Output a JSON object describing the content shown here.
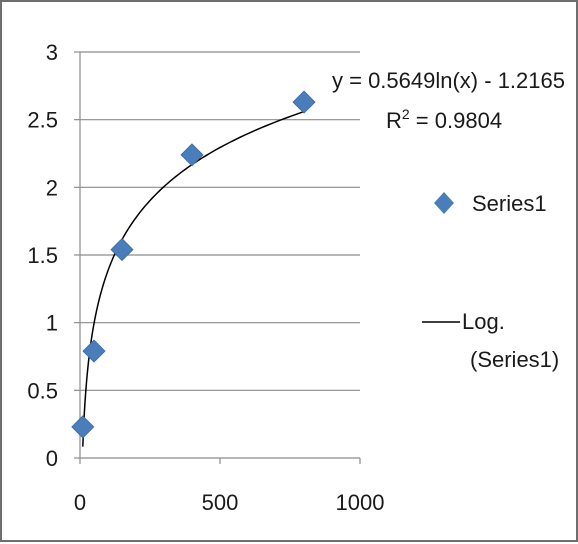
{
  "chart_data": {
    "type": "scatter",
    "title": "",
    "xlabel": "",
    "ylabel": "",
    "xlim": [
      0,
      1000
    ],
    "ylim": [
      0,
      3
    ],
    "x_ticks": [
      0,
      500,
      1000
    ],
    "x_tick_labels": [
      "0",
      "500",
      "1000"
    ],
    "y_ticks": [
      0,
      0.5,
      1,
      1.5,
      2,
      2.5,
      3
    ],
    "y_tick_labels": [
      "0",
      "0.5",
      "1",
      "1.5",
      "2",
      "2.5",
      "3"
    ],
    "grid": "horizontal",
    "series": [
      {
        "name": "Series1",
        "marker": "diamond",
        "color": "#4a7ebb",
        "x": [
          10,
          50,
          150,
          400,
          800
        ],
        "y": [
          0.23,
          0.79,
          1.54,
          2.24,
          2.63
        ]
      }
    ],
    "trendline": {
      "type": "logarithmic",
      "a": 0.5649,
      "b": -1.2165,
      "color": "#000000",
      "equation_label": "y = 0.5649ln(x) - 1.2165",
      "r2_label_prefix": "R",
      "r2_label_sup": "2",
      "r2_label_suffix": " = 0.9804"
    },
    "legend": {
      "placement": "right",
      "items": [
        "Series1",
        "Log.",
        "(Series1)"
      ]
    }
  }
}
